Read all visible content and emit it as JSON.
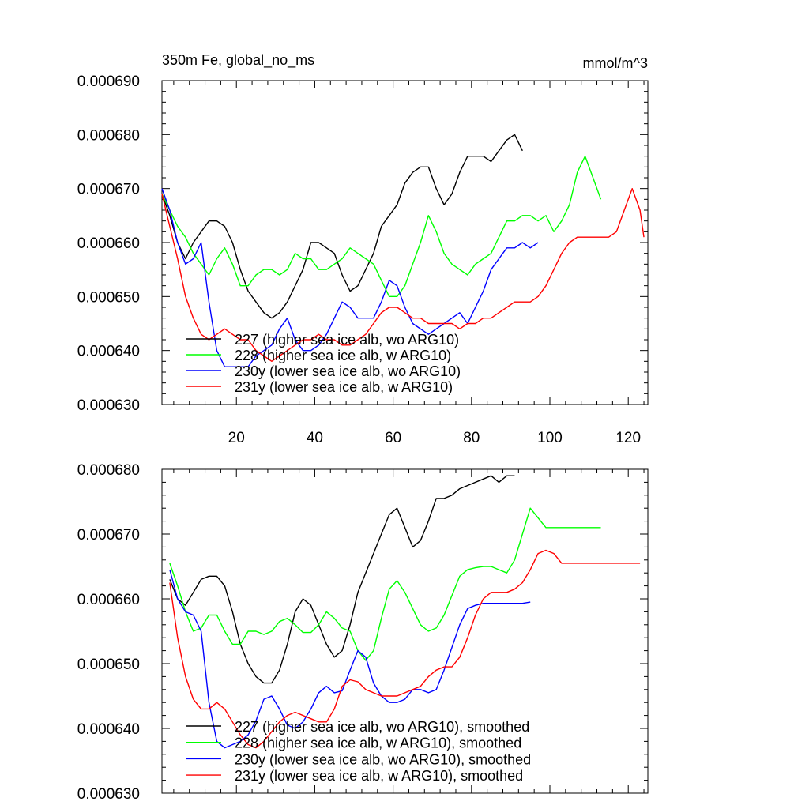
{
  "chart_data": [
    {
      "type": "line",
      "title_left": "350m Fe, global_no_ms",
      "title_right": "mmol/m^3",
      "xlabel": "",
      "ylabel": "",
      "xlim": [
        1,
        125
      ],
      "ylim": [
        0.00063,
        0.00069
      ],
      "xticks": [
        "20",
        "40",
        "60",
        "80",
        "100",
        "120"
      ],
      "yticks": [
        "0.000630",
        "0.000640",
        "0.000650",
        "0.000660",
        "0.000670",
        "0.000680",
        "0.000690"
      ],
      "legend_position": "lower-left",
      "series": [
        {
          "name": "227 (higher sea ice alb, wo ARG10)",
          "color": "#000000",
          "x": [
            1,
            3,
            5,
            7,
            9,
            11,
            13,
            15,
            17,
            19,
            21,
            23,
            25,
            27,
            29,
            31,
            33,
            35,
            37,
            39,
            41,
            43,
            45,
            47,
            49,
            51,
            53,
            55,
            57,
            59,
            61,
            63,
            65,
            67,
            69,
            71,
            73,
            75,
            77,
            79,
            81,
            83,
            85,
            87,
            89,
            91,
            93
          ],
          "y": [
            0.000669,
            0.000665,
            0.00066,
            0.000657,
            0.00066,
            0.000662,
            0.000664,
            0.000664,
            0.000663,
            0.00066,
            0.000655,
            0.000651,
            0.000649,
            0.000647,
            0.000646,
            0.000647,
            0.000649,
            0.000652,
            0.000655,
            0.00066,
            0.00066,
            0.000659,
            0.000658,
            0.000654,
            0.000651,
            0.000652,
            0.000655,
            0.000658,
            0.000663,
            0.000665,
            0.000667,
            0.000671,
            0.000673,
            0.000674,
            0.000674,
            0.00067,
            0.000667,
            0.000669,
            0.000673,
            0.000676,
            0.000676,
            0.000676,
            0.000675,
            0.000677,
            0.000679,
            0.00068,
            0.000677
          ]
        },
        {
          "name": "228 (higher sea ice alb, w ARG10)",
          "color": "#00ff00",
          "x": [
            1,
            3,
            5,
            7,
            9,
            11,
            13,
            15,
            17,
            19,
            21,
            23,
            25,
            27,
            29,
            31,
            33,
            35,
            37,
            39,
            41,
            43,
            45,
            47,
            49,
            51,
            53,
            55,
            57,
            59,
            61,
            63,
            65,
            67,
            69,
            71,
            73,
            75,
            77,
            79,
            81,
            83,
            85,
            87,
            89,
            91,
            93,
            95,
            97,
            99,
            101,
            103,
            105,
            107,
            109,
            111,
            113
          ],
          "y": [
            0.000669,
            0.000666,
            0.000663,
            0.000661,
            0.000658,
            0.000656,
            0.000654,
            0.000657,
            0.000659,
            0.000656,
            0.000652,
            0.000652,
            0.000654,
            0.000655,
            0.000655,
            0.000654,
            0.000655,
            0.000658,
            0.000657,
            0.000657,
            0.000655,
            0.000655,
            0.000656,
            0.000657,
            0.000659,
            0.000658,
            0.000657,
            0.000656,
            0.000653,
            0.00065,
            0.00065,
            0.000652,
            0.000656,
            0.00066,
            0.000665,
            0.000662,
            0.000658,
            0.000656,
            0.000655,
            0.000654,
            0.000656,
            0.000657,
            0.000658,
            0.000661,
            0.000664,
            0.000664,
            0.000665,
            0.000665,
            0.000664,
            0.000665,
            0.000662,
            0.000664,
            0.000667,
            0.000673,
            0.000676,
            0.000672,
            0.000668
          ]
        },
        {
          "name": "230y (lower sea ice alb, wo ARG10)",
          "color": "#0000ff",
          "x": [
            1,
            3,
            5,
            7,
            9,
            11,
            13,
            15,
            17,
            19,
            21,
            23,
            25,
            27,
            29,
            31,
            33,
            35,
            37,
            39,
            41,
            43,
            45,
            47,
            49,
            51,
            53,
            55,
            57,
            59,
            61,
            63,
            65,
            67,
            69,
            71,
            73,
            75,
            77,
            79,
            81,
            83,
            85,
            87,
            89,
            91,
            93,
            95,
            97
          ],
          "y": [
            0.00067,
            0.000666,
            0.00066,
            0.000656,
            0.000657,
            0.00066,
            0.000649,
            0.00064,
            0.000637,
            0.000637,
            0.000637,
            0.000637,
            0.000639,
            0.00064,
            0.000641,
            0.000644,
            0.000646,
            0.000642,
            0.00064,
            0.00064,
            0.000641,
            0.000643,
            0.000646,
            0.000649,
            0.000648,
            0.000646,
            0.000646,
            0.000646,
            0.000649,
            0.000653,
            0.000652,
            0.000648,
            0.000645,
            0.000644,
            0.000643,
            0.000644,
            0.000645,
            0.000646,
            0.000647,
            0.000645,
            0.000648,
            0.000651,
            0.000655,
            0.000657,
            0.000659,
            0.000659,
            0.00066,
            0.000659,
            0.00066
          ]
        },
        {
          "name": "231y (lower sea ice alb, w ARG10)",
          "color": "#ff0000",
          "x": [
            1,
            3,
            5,
            7,
            9,
            11,
            13,
            15,
            17,
            19,
            21,
            23,
            25,
            27,
            29,
            31,
            33,
            35,
            37,
            39,
            41,
            43,
            45,
            47,
            49,
            51,
            53,
            55,
            57,
            59,
            61,
            63,
            65,
            67,
            69,
            71,
            73,
            75,
            77,
            79,
            81,
            83,
            85,
            87,
            89,
            91,
            93,
            95,
            97,
            99,
            101,
            103,
            105,
            107,
            109,
            111,
            113,
            115,
            117,
            119,
            121,
            123,
            124
          ],
          "y": [
            0.000669,
            0.000663,
            0.000657,
            0.00065,
            0.000646,
            0.000643,
            0.000642,
            0.000643,
            0.000644,
            0.000643,
            0.000642,
            0.000642,
            0.00064,
            0.000639,
            0.000638,
            0.000639,
            0.00064,
            0.000641,
            0.000642,
            0.000642,
            0.000643,
            0.000642,
            0.000642,
            0.000641,
            0.000641,
            0.000642,
            0.000643,
            0.000645,
            0.000647,
            0.000648,
            0.000648,
            0.000647,
            0.000646,
            0.000646,
            0.000645,
            0.000645,
            0.000645,
            0.000645,
            0.000644,
            0.000645,
            0.000645,
            0.000646,
            0.000646,
            0.000647,
            0.000648,
            0.000649,
            0.000649,
            0.000649,
            0.00065,
            0.000652,
            0.000655,
            0.000658,
            0.00066,
            0.000661,
            0.000661,
            0.000661,
            0.000661,
            0.000661,
            0.000662,
            0.000666,
            0.00067,
            0.000666,
            0.000661
          ]
        }
      ]
    },
    {
      "type": "line",
      "title_left": "",
      "title_right": "",
      "xlabel": "",
      "ylabel": "",
      "xlim": [
        1,
        125
      ],
      "ylim": [
        0.00063,
        0.00068
      ],
      "xticks": [],
      "yticks": [
        "0.000630",
        "0.000640",
        "0.000650",
        "0.000660",
        "0.000670",
        "0.000680"
      ],
      "legend_position": "lower-left",
      "series": [
        {
          "name": "227 (higher sea ice alb, wo ARG10), smoothed",
          "color": "#000000",
          "x": [
            3,
            5,
            7,
            9,
            11,
            13,
            15,
            17,
            19,
            21,
            23,
            25,
            27,
            29,
            31,
            33,
            35,
            37,
            39,
            41,
            43,
            45,
            47,
            49,
            51,
            53,
            55,
            57,
            59,
            61,
            63,
            65,
            67,
            69,
            71,
            73,
            75,
            77,
            79,
            81,
            83,
            85,
            87,
            89,
            91
          ],
          "y": [
            0.000663,
            0.00066,
            0.000659,
            0.000661,
            0.000663,
            0.0006635,
            0.0006635,
            0.000662,
            0.000658,
            0.000653,
            0.00065,
            0.000648,
            0.000647,
            0.000647,
            0.000649,
            0.000653,
            0.000658,
            0.00066,
            0.000659,
            0.000656,
            0.000653,
            0.000651,
            0.000652,
            0.000656,
            0.000661,
            0.000664,
            0.000667,
            0.00067,
            0.000673,
            0.000674,
            0.000671,
            0.000668,
            0.000669,
            0.000672,
            0.0006755,
            0.0006755,
            0.000676,
            0.000677,
            0.0006775,
            0.000678,
            0.0006785,
            0.000679,
            0.000678,
            0.000679,
            0.000679
          ]
        },
        {
          "name": "228 (higher sea ice alb, w ARG10), smoothed",
          "color": "#00ff00",
          "x": [
            3,
            5,
            7,
            9,
            11,
            13,
            15,
            17,
            19,
            21,
            23,
            25,
            27,
            29,
            31,
            33,
            35,
            37,
            39,
            41,
            43,
            45,
            47,
            49,
            51,
            53,
            55,
            57,
            59,
            61,
            63,
            65,
            67,
            69,
            71,
            73,
            75,
            77,
            79,
            81,
            83,
            85,
            87,
            89,
            91,
            93,
            95,
            97,
            99,
            101,
            103,
            105,
            107,
            109,
            111,
            113
          ],
          "y": [
            0.0006655,
            0.000662,
            0.000658,
            0.000655,
            0.0006555,
            0.0006575,
            0.0006575,
            0.000655,
            0.000653,
            0.000653,
            0.000655,
            0.000655,
            0.0006545,
            0.000655,
            0.0006565,
            0.000657,
            0.000656,
            0.0006548,
            0.0006548,
            0.000656,
            0.000658,
            0.000657,
            0.0006555,
            0.000655,
            0.000652,
            0.0006505,
            0.000652,
            0.000657,
            0.0006615,
            0.0006628,
            0.000661,
            0.0006585,
            0.000656,
            0.000655,
            0.0006555,
            0.0006575,
            0.0006605,
            0.0006635,
            0.0006645,
            0.0006648,
            0.000665,
            0.000665,
            0.0006645,
            0.000664,
            0.000666,
            0.00067,
            0.000674,
            0.0006725,
            0.000671,
            0.000671,
            0.000671,
            0.000671,
            0.000671,
            0.000671,
            0.000671,
            0.000671
          ]
        },
        {
          "name": "230y (lower sea ice alb, wo ARG10), smoothed",
          "color": "#0000ff",
          "x": [
            3,
            5,
            7,
            9,
            11,
            13,
            15,
            17,
            19,
            21,
            23,
            25,
            27,
            29,
            31,
            33,
            35,
            37,
            39,
            41,
            43,
            45,
            47,
            49,
            51,
            53,
            55,
            57,
            59,
            61,
            63,
            65,
            67,
            69,
            71,
            73,
            75,
            77,
            79,
            81,
            83,
            85,
            87,
            89,
            91,
            93,
            95
          ],
          "y": [
            0.0006645,
            0.00066,
            0.000658,
            0.0006575,
            0.000655,
            0.000644,
            0.000638,
            0.000637,
            0.0006375,
            0.000638,
            0.000639,
            0.0006412,
            0.0006445,
            0.000645,
            0.000643,
            0.0006405,
            0.00064,
            0.000641,
            0.000643,
            0.0006455,
            0.0006465,
            0.0006455,
            0.0006458,
            0.000649,
            0.000652,
            0.000651,
            0.000647,
            0.000645,
            0.000644,
            0.000644,
            0.0006445,
            0.000646,
            0.000646,
            0.0006455,
            0.000646,
            0.000649,
            0.0006525,
            0.000656,
            0.0006585,
            0.000659,
            0.0006593,
            0.0006593,
            0.0006593,
            0.0006593,
            0.0006593,
            0.0006593,
            0.0006595
          ]
        },
        {
          "name": "231y (lower sea ice alb, w ARG10), smoothed",
          "color": "#ff0000",
          "x": [
            3,
            5,
            7,
            9,
            11,
            13,
            15,
            17,
            19,
            21,
            23,
            25,
            27,
            29,
            31,
            33,
            35,
            37,
            39,
            41,
            43,
            45,
            47,
            49,
            51,
            53,
            55,
            57,
            59,
            61,
            63,
            65,
            67,
            69,
            71,
            73,
            75,
            77,
            79,
            81,
            83,
            85,
            87,
            89,
            91,
            93,
            95,
            97,
            99,
            101,
            103,
            105,
            107,
            109,
            111,
            113,
            115,
            117,
            119,
            121,
            123
          ],
          "y": [
            0.0006625,
            0.000654,
            0.000648,
            0.0006445,
            0.000643,
            0.000643,
            0.000644,
            0.000643,
            0.000641,
            0.000639,
            0.0006375,
            0.000637,
            0.000638,
            0.0006395,
            0.000641,
            0.000642,
            0.0006425,
            0.000642,
            0.0006415,
            0.000641,
            0.000641,
            0.000643,
            0.0006465,
            0.0006475,
            0.0006472,
            0.000646,
            0.0006455,
            0.000645,
            0.000645,
            0.000645,
            0.0006455,
            0.000646,
            0.0006465,
            0.000648,
            0.000649,
            0.0006495,
            0.0006495,
            0.000651,
            0.000654,
            0.0006575,
            0.00066,
            0.000661,
            0.000661,
            0.000661,
            0.0006615,
            0.0006625,
            0.0006645,
            0.000667,
            0.0006675,
            0.000667,
            0.0006655,
            0.0006655,
            0.0006655,
            0.0006655,
            0.0006655,
            0.0006655,
            0.0006655,
            0.0006655,
            0.0006655,
            0.0006655,
            0.0006655
          ]
        }
      ]
    }
  ]
}
